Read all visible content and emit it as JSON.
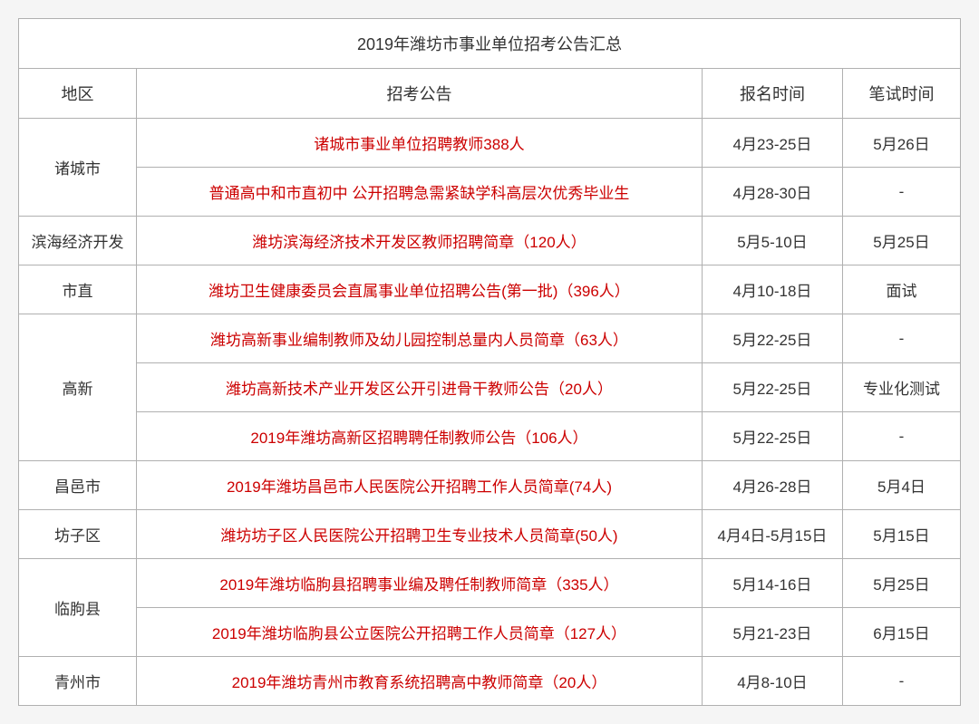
{
  "table": {
    "title": "2019年潍坊市事业单位招考公告汇总",
    "headers": {
      "region": "地区",
      "announcement": "招考公告",
      "signup_time": "报名时间",
      "exam_time": "笔试时间"
    },
    "rows": [
      {
        "region": "诸城市",
        "rowspan": 2,
        "announcement": "诸城市事业单位招聘教师388人",
        "signup_time": "4月23-25日",
        "exam_time": "5月26日"
      },
      {
        "region": "",
        "announcement": "普通高中和市直初中 公开招聘急需紧缺学科高层次优秀毕业生",
        "signup_time": "4月28-30日",
        "exam_time": "-"
      },
      {
        "region": "滨海经济开发",
        "rowspan": 1,
        "announcement": "潍坊滨海经济技术开发区教师招聘简章（120人）",
        "signup_time": "5月5-10日",
        "exam_time": "5月25日"
      },
      {
        "region": "市直",
        "rowspan": 1,
        "announcement": "潍坊卫生健康委员会直属事业单位招聘公告(第一批)（396人）",
        "signup_time": "4月10-18日",
        "exam_time": "面试"
      },
      {
        "region": "高新",
        "rowspan": 3,
        "announcement": "潍坊高新事业编制教师及幼儿园控制总量内人员简章（63人）",
        "signup_time": "5月22-25日",
        "exam_time": "-"
      },
      {
        "region": "",
        "announcement": "潍坊高新技术产业开发区公开引进骨干教师公告（20人）",
        "signup_time": "5月22-25日",
        "exam_time": "专业化测试"
      },
      {
        "region": "",
        "announcement": "2019年潍坊高新区招聘聘任制教师公告（106人）",
        "signup_time": "5月22-25日",
        "exam_time": "-"
      },
      {
        "region": "昌邑市",
        "rowspan": 1,
        "announcement": "2019年潍坊昌邑市人民医院公开招聘工作人员简章(74人)",
        "signup_time": "4月26-28日",
        "exam_time": "5月4日"
      },
      {
        "region": "坊子区",
        "rowspan": 1,
        "announcement": "潍坊坊子区人民医院公开招聘卫生专业技术人员简章(50人)",
        "signup_time": "4月4日-5月15日",
        "exam_time": "5月15日"
      },
      {
        "region": "临朐县",
        "rowspan": 2,
        "announcement": "2019年潍坊临朐县招聘事业编及聘任制教师简章（335人）",
        "signup_time": "5月14-16日",
        "exam_time": "5月25日"
      },
      {
        "region": "",
        "announcement": "2019年潍坊临朐县公立医院公开招聘工作人员简章（127人）",
        "signup_time": "5月21-23日",
        "exam_time": "6月15日"
      },
      {
        "region": "青州市",
        "rowspan": 1,
        "announcement": "2019年潍坊青州市教育系统招聘高中教师简章（20人）",
        "signup_time": "4月8-10日",
        "exam_time": "-"
      }
    ],
    "styling": {
      "border_color": "#b0b0b0",
      "title_text_color": "#333333",
      "header_text_color": "#333333",
      "region_text_color": "#333333",
      "announcement_text_color": "#cc0000",
      "date_text_color": "#333333",
      "background_color": "#ffffff",
      "font_family": "Microsoft YaHei",
      "title_font_size": 18,
      "cell_font_size": 17,
      "cell_padding": 14,
      "col_widths": {
        "region": 130,
        "signup": 155,
        "exam": 130
      }
    }
  }
}
